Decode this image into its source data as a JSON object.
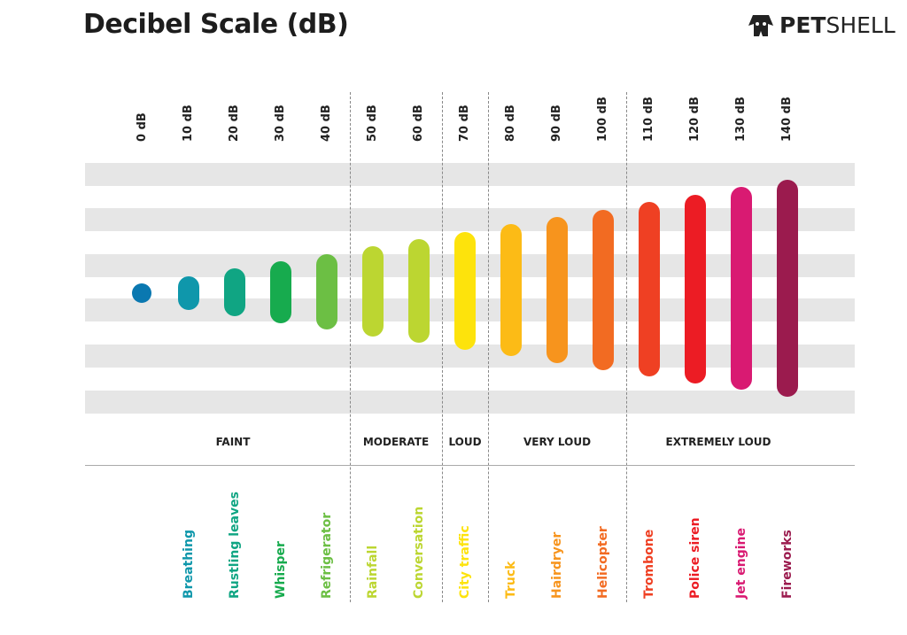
{
  "header": {
    "title": "Decibel Scale (dB)",
    "logo_text": "PETSHELL",
    "logo_bold": "PET",
    "logo_light": "SHELL"
  },
  "chart_data": {
    "type": "bar",
    "title": "Decibel Scale (dB)",
    "categories": [
      "0 dB",
      "10 dB",
      "20 dB",
      "30 dB",
      "40 dB",
      "50 dB",
      "60 dB",
      "70 dB",
      "80 dB",
      "90 dB",
      "100 dB",
      "110 dB",
      "120 dB",
      "130 dB",
      "140 dB"
    ],
    "values": [
      0,
      10,
      20,
      30,
      40,
      50,
      60,
      70,
      80,
      90,
      100,
      110,
      120,
      130,
      140
    ],
    "sources": [
      "",
      "Breathing",
      "Rustling leaves",
      "Whisper",
      "Refrigerator",
      "Rainfall",
      "Conversation",
      "City traffic",
      "Truck",
      "Hairdryer",
      "Helicopter",
      "Trombone",
      "Police siren",
      "Jet engine",
      "Fireworks"
    ],
    "colors": [
      "#0a78b0",
      "#0f97ab",
      "#10a583",
      "#17ab4e",
      "#6cbf44",
      "#bcd631",
      "#bcd631",
      "#fde30c",
      "#fcbb16",
      "#f7941d",
      "#f26b22",
      "#ef4023",
      "#ec1c24",
      "#d91a72",
      "#9b1b4e"
    ],
    "bands": [
      {
        "label": "FAINT",
        "from": 0,
        "to": 40
      },
      {
        "label": "MODERATE",
        "from": 50,
        "to": 60
      },
      {
        "label": "LOUD",
        "from": 70,
        "to": 70
      },
      {
        "label": "VERY LOUD",
        "from": 80,
        "to": 100
      },
      {
        "label": "EXTREMELY LOUD",
        "from": 110,
        "to": 140
      }
    ],
    "ylim": [
      0,
      140
    ]
  }
}
